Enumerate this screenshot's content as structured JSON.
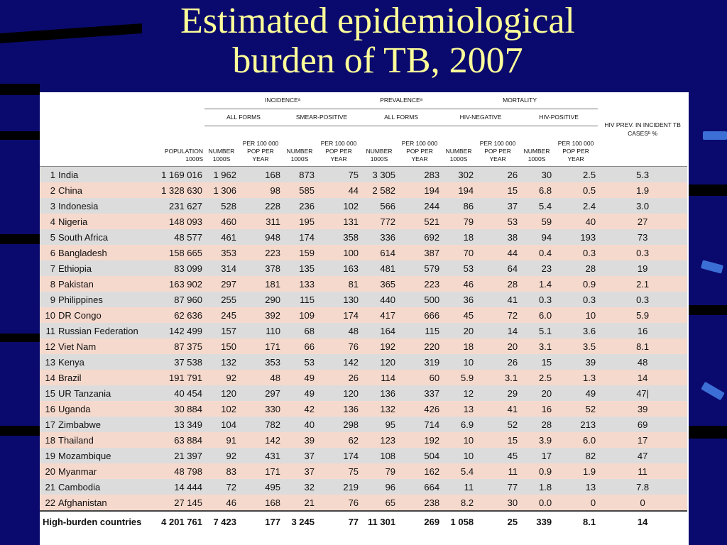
{
  "title": {
    "line1": "Estimated epidemiological",
    "line2": "burden of TB, 2007"
  },
  "headers": {
    "incidence": "INCIDENCEᵃ",
    "prevalence": "PREVALENCEᵃ",
    "mortality": "MORTALITY",
    "all_forms": "ALL FORMS",
    "smear_positive": "SMEAR-POSITIVE",
    "prev_all_forms": "ALL FORMS",
    "hiv_negative": "HIV-NEGATIVE",
    "hiv_positive": "HIV-POSITIVE",
    "hiv_prev": "HIV PREV. IN INCIDENT TB CASESᵇ %",
    "population": "POPULATION 1000s",
    "number": "NUMBER 1000s",
    "per": "PER 100 000 POP PER YEAR"
  },
  "rows": [
    [
      "1",
      "India",
      "1 169 016",
      "1 962",
      "168",
      "873",
      "75",
      "3 305",
      "283",
      "302",
      "26",
      "30",
      "2.5",
      "5.3"
    ],
    [
      "2",
      "China",
      "1 328 630",
      "1 306",
      "98",
      "585",
      "44",
      "2 582",
      "194",
      "194",
      "15",
      "6.8",
      "0.5",
      "1.9"
    ],
    [
      "3",
      "Indonesia",
      "231 627",
      "528",
      "228",
      "236",
      "102",
      "566",
      "244",
      "86",
      "37",
      "5.4",
      "2.4",
      "3.0"
    ],
    [
      "4",
      "Nigeria",
      "148 093",
      "460",
      "311",
      "195",
      "131",
      "772",
      "521",
      "79",
      "53",
      "59",
      "40",
      "27"
    ],
    [
      "5",
      "South Africa",
      "48 577",
      "461",
      "948",
      "174",
      "358",
      "336",
      "692",
      "18",
      "38",
      "94",
      "193",
      "73"
    ],
    [
      "6",
      "Bangladesh",
      "158 665",
      "353",
      "223",
      "159",
      "100",
      "614",
      "387",
      "70",
      "44",
      "0.4",
      "0.3",
      "0.3"
    ],
    [
      "7",
      "Ethiopia",
      "83 099",
      "314",
      "378",
      "135",
      "163",
      "481",
      "579",
      "53",
      "64",
      "23",
      "28",
      "19"
    ],
    [
      "8",
      "Pakistan",
      "163 902",
      "297",
      "181",
      "133",
      "81",
      "365",
      "223",
      "46",
      "28",
      "1.4",
      "0.9",
      "2.1"
    ],
    [
      "9",
      "Philippines",
      "87 960",
      "255",
      "290",
      "115",
      "130",
      "440",
      "500",
      "36",
      "41",
      "0.3",
      "0.3",
      "0.3"
    ],
    [
      "10",
      "DR Congo",
      "62 636",
      "245",
      "392",
      "109",
      "174",
      "417",
      "666",
      "45",
      "72",
      "6.0",
      "10",
      "5.9"
    ],
    [
      "11",
      "Russian Federation",
      "142 499",
      "157",
      "110",
      "68",
      "48",
      "164",
      "115",
      "20",
      "14",
      "5.1",
      "3.6",
      "16"
    ],
    [
      "12",
      "Viet Nam",
      "87 375",
      "150",
      "171",
      "66",
      "76",
      "192",
      "220",
      "18",
      "20",
      "3.1",
      "3.5",
      "8.1"
    ],
    [
      "13",
      "Kenya",
      "37 538",
      "132",
      "353",
      "53",
      "142",
      "120",
      "319",
      "10",
      "26",
      "15",
      "39",
      "48"
    ],
    [
      "14",
      "Brazil",
      "191 791",
      "92",
      "48",
      "49",
      "26",
      "114",
      "60",
      "5.9",
      "3.1",
      "2.5",
      "1.3",
      "14"
    ],
    [
      "15",
      "UR Tanzania",
      "40 454",
      "120",
      "297",
      "49",
      "120",
      "136",
      "337",
      "12",
      "29",
      "20",
      "49",
      "47|"
    ],
    [
      "16",
      "Uganda",
      "30 884",
      "102",
      "330",
      "42",
      "136",
      "132",
      "426",
      "13",
      "41",
      "16",
      "52",
      "39"
    ],
    [
      "17",
      "Zimbabwe",
      "13 349",
      "104",
      "782",
      "40",
      "298",
      "95",
      "714",
      "6.9",
      "52",
      "28",
      "213",
      "69"
    ],
    [
      "18",
      "Thailand",
      "63 884",
      "91",
      "142",
      "39",
      "62",
      "123",
      "192",
      "10",
      "15",
      "3.9",
      "6.0",
      "17"
    ],
    [
      "19",
      "Mozambique",
      "21 397",
      "92",
      "431",
      "37",
      "174",
      "108",
      "504",
      "10",
      "45",
      "17",
      "82",
      "47"
    ],
    [
      "20",
      "Myanmar",
      "48 798",
      "83",
      "171",
      "37",
      "75",
      "79",
      "162",
      "5.4",
      "11",
      "0.9",
      "1.9",
      "11"
    ],
    [
      "21",
      "Cambodia",
      "14 444",
      "72",
      "495",
      "32",
      "219",
      "96",
      "664",
      "11",
      "77",
      "1.8",
      "13",
      "7.8"
    ],
    [
      "22",
      "Afghanistan",
      "27 145",
      "46",
      "168",
      "21",
      "76",
      "65",
      "238",
      "8.2",
      "30",
      "0.0",
      "0",
      "0"
    ]
  ],
  "total": [
    "High-burden countries",
    "4 201 761",
    "7 423",
    "177",
    "3 245",
    "77",
    "11 301",
    "269",
    "1 058",
    "25",
    "339",
    "8.1",
    "14"
  ]
}
